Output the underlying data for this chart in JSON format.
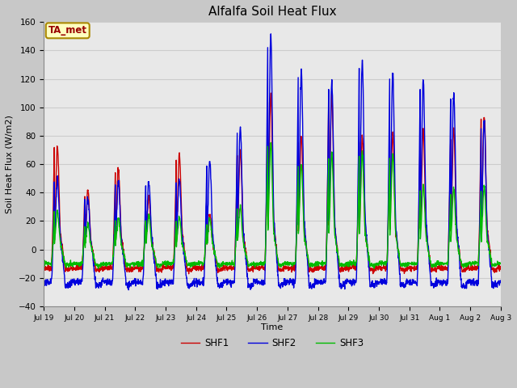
{
  "title": "Alfalfa Soil Heat Flux",
  "ylabel": "Soil Heat Flux (W/m2)",
  "xlabel": "Time",
  "ylim": [
    -40,
    160
  ],
  "yticks": [
    -40,
    -20,
    0,
    20,
    40,
    60,
    80,
    100,
    120,
    140,
    160
  ],
  "fig_bg_color": "#c8c8c8",
  "plot_bg_color": "#e8e8e8",
  "line_colors": {
    "SHF1": "#cc0000",
    "SHF2": "#0000dd",
    "SHF3": "#00bb00"
  },
  "line_width": 1.0,
  "legend_labels": [
    "SHF1",
    "SHF2",
    "SHF3"
  ],
  "annotation_text": "TA_met",
  "annotation_fg": "#990000",
  "annotation_bg": "#ffffc0",
  "annotation_edge": "#aa8800",
  "day_labels": [
    "Jul 19",
    "Jul 20",
    "Jul 21",
    "Jul 22",
    "Jul 23",
    "Jul 24",
    "Jul 25",
    "Jul 26",
    "Jul 27",
    "Jul 28",
    "Jul 29",
    "Jul 30",
    "Jul 31",
    "Aug 1",
    "Aug 2",
    "Aug 3"
  ],
  "grid_color": "#cccccc",
  "n_days": 15,
  "points_per_day": 144,
  "day_peaks_SHF1": [
    73,
    42,
    57,
    37,
    67,
    25,
    70,
    110,
    80,
    110,
    80,
    82,
    85,
    85,
    95
  ],
  "day_peaks_SHF2": [
    50,
    36,
    47,
    48,
    50,
    63,
    85,
    150,
    127,
    118,
    132,
    124,
    119,
    110,
    90
  ],
  "day_peaks_SHF3": [
    27,
    18,
    22,
    24,
    23,
    22,
    30,
    75,
    60,
    68,
    68,
    67,
    45,
    42,
    44
  ],
  "night_min_SHF1": -13,
  "night_min_SHF2": -23,
  "night_min_SHF3": -10
}
